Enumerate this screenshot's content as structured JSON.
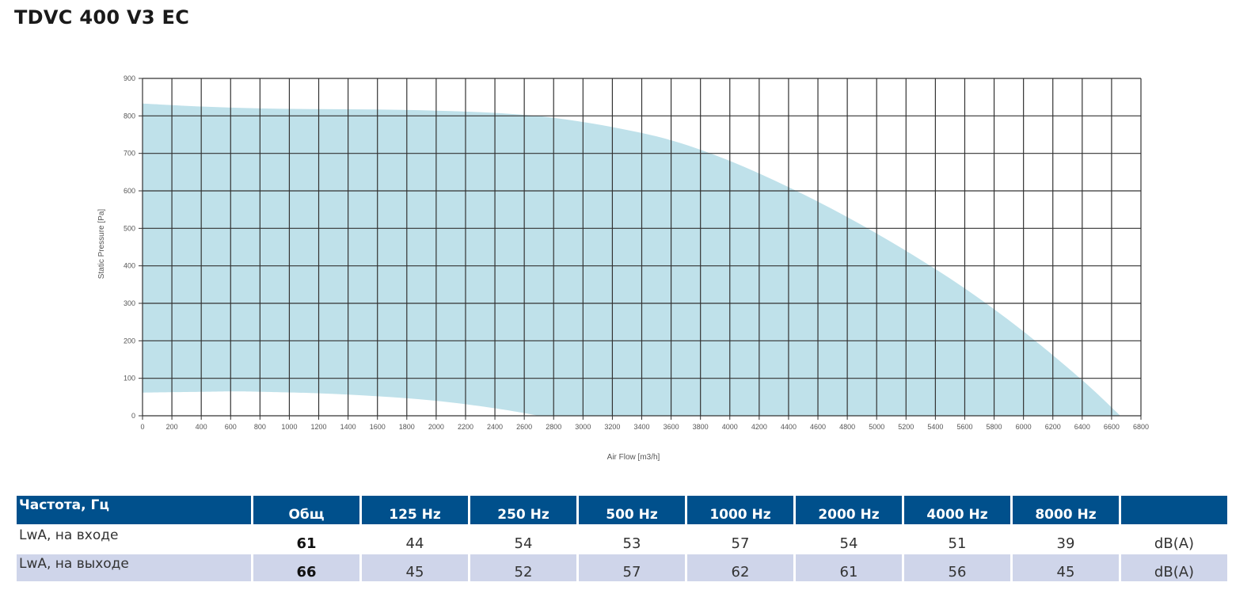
{
  "title": "TDVC 400 V3 EC",
  "chart_data": {
    "type": "area",
    "title": "",
    "xlabel": "Air Flow [m3/h]",
    "ylabel": "Static Pressure [Pa]",
    "xlim": [
      0,
      6800
    ],
    "ylim": [
      0,
      900
    ],
    "xticks": [
      0,
      200,
      400,
      600,
      800,
      1000,
      1200,
      1400,
      1600,
      1800,
      2000,
      2200,
      2400,
      2600,
      2800,
      3000,
      3200,
      3400,
      3600,
      3800,
      4000,
      4200,
      4400,
      4600,
      4800,
      5000,
      5200,
      5400,
      5600,
      5800,
      6000,
      6200,
      6400,
      6600,
      6800
    ],
    "yticks": [
      0,
      100,
      200,
      300,
      400,
      500,
      600,
      700,
      800,
      900
    ],
    "grid": true,
    "fill_color": "#bfe1ea",
    "grid_color": "#333333",
    "upper_curve": {
      "x": [
        0,
        400,
        800,
        1200,
        1600,
        2000,
        2400,
        2800,
        3200,
        3600,
        4000,
        4400,
        4800,
        5200,
        5600,
        6000,
        6400,
        6660
      ],
      "y": [
        833,
        825,
        820,
        818,
        817,
        814,
        808,
        795,
        770,
        735,
        680,
        610,
        530,
        440,
        340,
        225,
        95,
        0
      ]
    },
    "lower_curve": {
      "x": [
        0,
        400,
        600,
        800,
        1200,
        1600,
        2000,
        2400,
        2700
      ],
      "y": [
        62,
        64,
        65,
        64,
        60,
        52,
        40,
        20,
        0
      ]
    }
  },
  "table": {
    "header": [
      "Частота, Гц",
      "Общ",
      "125 Hz",
      "250 Hz",
      "500 Hz",
      "1000 Hz",
      "2000 Hz",
      "4000 Hz",
      "8000 Hz",
      ""
    ],
    "rows": [
      {
        "label": "LwA, на входе",
        "total": "61",
        "values": [
          "44",
          "54",
          "53",
          "57",
          "54",
          "51",
          "39"
        ],
        "unit": "dB(A)"
      },
      {
        "label": "LwA, на выходе",
        "total": "66",
        "values": [
          "45",
          "52",
          "57",
          "62",
          "61",
          "56",
          "45"
        ],
        "unit": "dB(A)"
      }
    ]
  }
}
